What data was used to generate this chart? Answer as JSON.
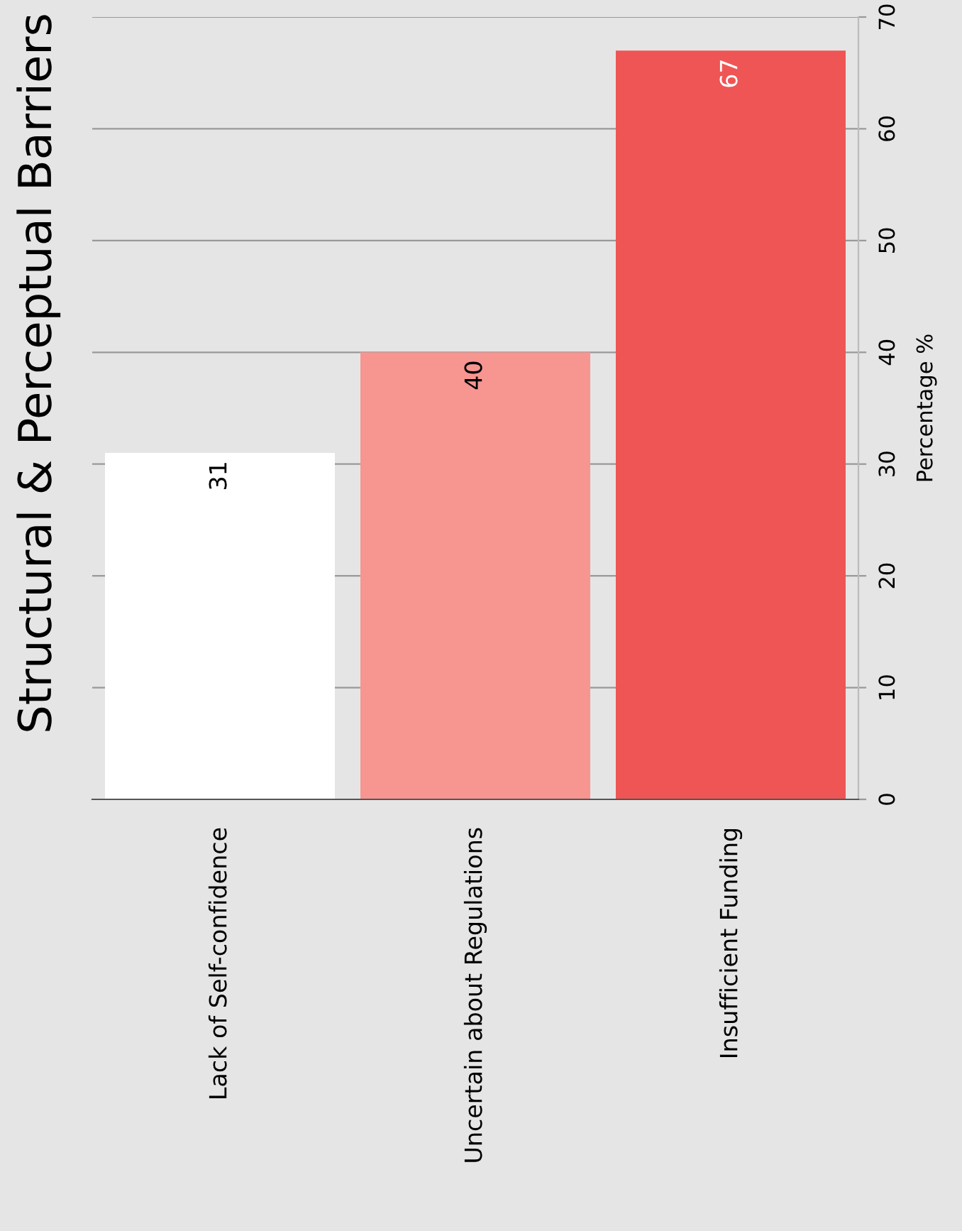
{
  "chart_data": {
    "type": "bar",
    "title": "Structural & Perceptual Barriers",
    "ylabel": "Percentage %",
    "categories": [
      "Lack of Self-confidence",
      "Uncertain about Regulations",
      "Insufficient Funding"
    ],
    "values": [
      31,
      40,
      67
    ],
    "colors": [
      "#ffffff",
      "#f79591",
      "#ef5555"
    ],
    "ylim": [
      0,
      70
    ],
    "yticks": [
      0,
      10,
      20,
      30,
      40,
      50,
      60,
      70
    ],
    "grid": "y",
    "data_labels": true,
    "legend": false
  }
}
